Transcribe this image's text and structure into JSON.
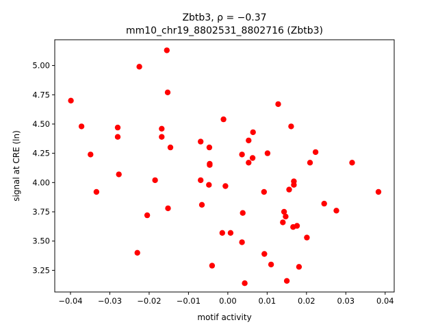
{
  "chart_data": {
    "type": "scatter",
    "title_line1": "Zbtb3, ρ = −0.37",
    "title_line2": "mm10_chr19_8802531_8802716 (Zbtb3)",
    "xlabel": "motif activity",
    "ylabel": "signal at CRE (ln)",
    "xlim": [
      -0.044,
      0.0423
    ],
    "ylim": [
      3.065,
      5.22
    ],
    "xticks": [
      -0.04,
      -0.03,
      -0.02,
      -0.01,
      0.0,
      0.01,
      0.02,
      0.03,
      0.04
    ],
    "xtick_labels": [
      "−0.04",
      "−0.03",
      "−0.02",
      "−0.01",
      "0.00",
      "0.01",
      "0.02",
      "0.03",
      "0.04"
    ],
    "yticks": [
      3.25,
      3.5,
      3.75,
      4.0,
      4.25,
      4.5,
      4.75,
      5.0
    ],
    "ytick_labels": [
      "3.25",
      "3.50",
      "3.75",
      "4.00",
      "4.25",
      "4.50",
      "4.75",
      "5.00"
    ],
    "grid": false,
    "marker_color": "#ff0000",
    "points": [
      [
        -0.0399,
        4.7
      ],
      [
        -0.0372,
        4.48
      ],
      [
        -0.0349,
        4.24
      ],
      [
        -0.0334,
        3.92
      ],
      [
        -0.028,
        4.47
      ],
      [
        -0.028,
        4.39
      ],
      [
        -0.0277,
        4.07
      ],
      [
        -0.023,
        3.4
      ],
      [
        -0.0225,
        4.99
      ],
      [
        -0.0205,
        3.72
      ],
      [
        -0.0185,
        4.02
      ],
      [
        -0.0168,
        4.46
      ],
      [
        -0.0168,
        4.39
      ],
      [
        -0.0155,
        5.13
      ],
      [
        -0.0153,
        4.77
      ],
      [
        -0.0152,
        3.78
      ],
      [
        -0.0146,
        4.3
      ],
      [
        -0.0069,
        4.35
      ],
      [
        -0.0069,
        4.02
      ],
      [
        -0.0066,
        3.81
      ],
      [
        -0.0047,
        4.3
      ],
      [
        -0.0046,
        4.16
      ],
      [
        -0.0046,
        4.15
      ],
      [
        -0.0048,
        3.98
      ],
      [
        -0.004,
        3.29
      ],
      [
        -0.0011,
        4.54
      ],
      [
        -0.0014,
        3.57
      ],
      [
        -0.0006,
        3.97
      ],
      [
        0.0007,
        3.57
      ],
      [
        0.0036,
        4.24
      ],
      [
        0.0036,
        3.49
      ],
      [
        0.0038,
        3.74
      ],
      [
        0.0043,
        3.14
      ],
      [
        0.0053,
        4.36
      ],
      [
        0.0053,
        4.17
      ],
      [
        0.0063,
        4.21
      ],
      [
        0.0064,
        4.43
      ],
      [
        0.0092,
        3.92
      ],
      [
        0.0093,
        3.39
      ],
      [
        0.0101,
        4.25
      ],
      [
        0.011,
        3.3
      ],
      [
        0.0128,
        4.67
      ],
      [
        0.014,
        3.66
      ],
      [
        0.0143,
        3.75
      ],
      [
        0.0147,
        3.71
      ],
      [
        0.015,
        3.16
      ],
      [
        0.0156,
        3.94
      ],
      [
        0.0161,
        4.48
      ],
      [
        0.0166,
        3.62
      ],
      [
        0.0168,
        4.01
      ],
      [
        0.0168,
        3.98
      ],
      [
        0.0176,
        3.63
      ],
      [
        0.0181,
        3.28
      ],
      [
        0.0201,
        3.53
      ],
      [
        0.0209,
        4.17
      ],
      [
        0.0223,
        4.26
      ],
      [
        0.0245,
        3.82
      ],
      [
        0.0276,
        3.76
      ],
      [
        0.0316,
        4.17
      ],
      [
        0.0383,
        3.92
      ]
    ]
  }
}
